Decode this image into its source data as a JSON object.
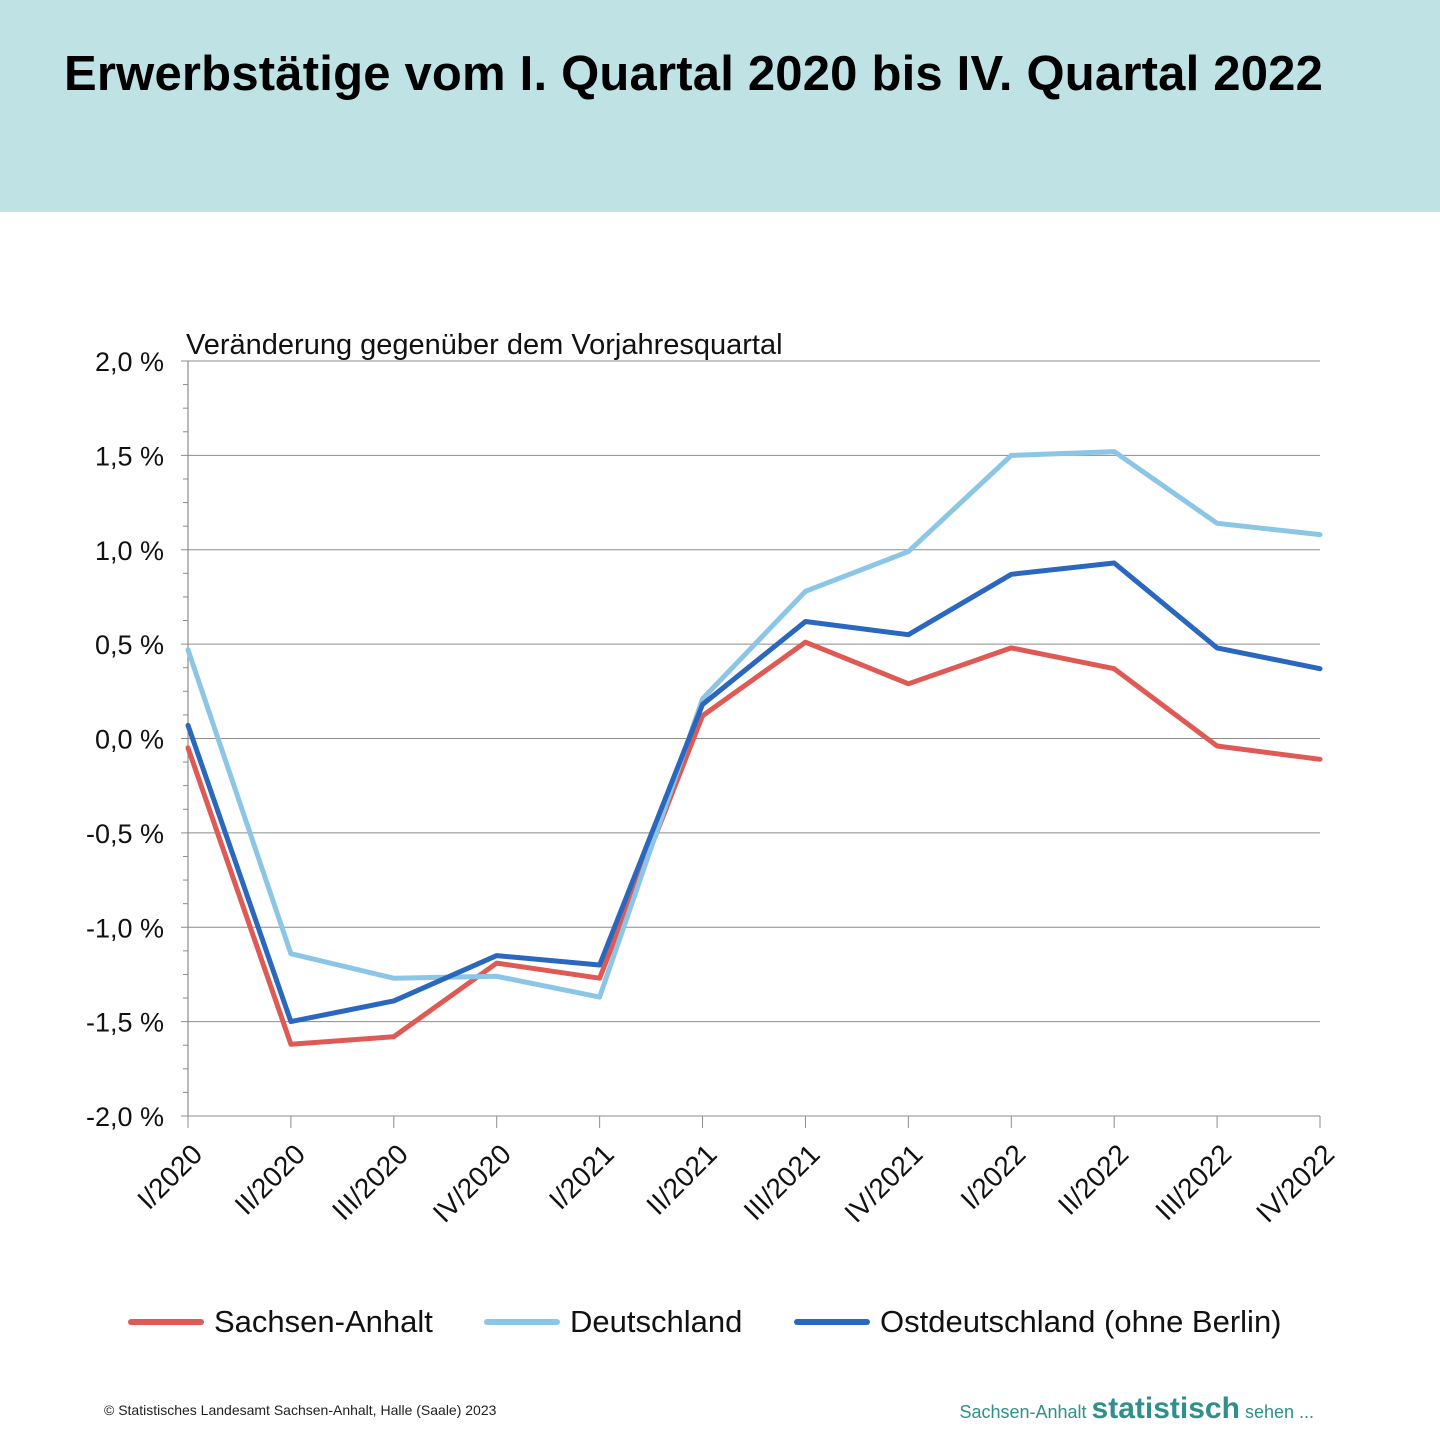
{
  "header": {
    "title": "Erwerbstätige vom I. Quartal 2020 bis IV. Quartal 2022",
    "background": "#bfe2e4"
  },
  "chart_data": {
    "type": "line",
    "subtitle": "Veränderung gegenüber dem Vorjahresquartal",
    "categories": [
      "I/2020",
      "II/2020",
      "III/2020",
      "IV/2020",
      "I/2021",
      "II/2021",
      "III/2021",
      "IV/2021",
      "I/2022",
      "II/2022",
      "III/2022",
      "IV/2022"
    ],
    "y_ticks": [
      {
        "value": 2.0,
        "label": "2,0 %"
      },
      {
        "value": 1.5,
        "label": "1,5 %"
      },
      {
        "value": 1.0,
        "label": "1,0 %"
      },
      {
        "value": 0.5,
        "label": "0,5 %"
      },
      {
        "value": 0.0,
        "label": "0,0 %"
      },
      {
        "value": -0.5,
        "label": "-0,5 %"
      },
      {
        "value": -1.0,
        "label": "-1,0 %"
      },
      {
        "value": -1.5,
        "label": "-1,5 %"
      },
      {
        "value": -2.0,
        "label": "-2,0 %"
      }
    ],
    "ylim": [
      -2.0,
      2.0
    ],
    "grid": true,
    "legend_position": "bottom",
    "series": [
      {
        "name": "Sachsen-Anhalt",
        "color": "#e05a55",
        "values": [
          -0.05,
          -1.62,
          -1.58,
          -1.19,
          -1.27,
          0.12,
          0.51,
          0.29,
          0.48,
          0.37,
          -0.04,
          -0.11
        ]
      },
      {
        "name": "Deutschland",
        "color": "#8cc6e6",
        "values": [
          0.47,
          -1.14,
          -1.27,
          -1.26,
          -1.37,
          0.21,
          0.78,
          0.99,
          1.5,
          1.52,
          1.14,
          1.08
        ]
      },
      {
        "name": "Ostdeutschland (ohne Berlin)",
        "color": "#2a67be",
        "values": [
          0.07,
          -1.5,
          -1.39,
          -1.15,
          -1.2,
          0.18,
          0.62,
          0.55,
          0.87,
          0.93,
          0.48,
          0.37
        ]
      }
    ]
  },
  "footer": {
    "copyright": "© Statistisches Landesamt Sachsen-Anhalt, Halle (Saale) 2023",
    "brand_pre": "Sachsen-Anhalt",
    "brand_strong": "statistisch",
    "brand_post": "sehen ..."
  }
}
